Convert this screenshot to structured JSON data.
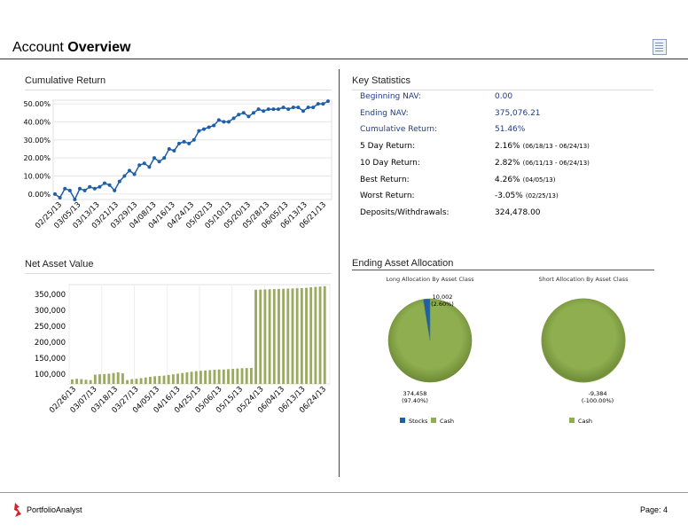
{
  "header": {
    "title_plain": "Account",
    "title_bold": "Overview",
    "doc_icon": "document-icon"
  },
  "cumulative_return": {
    "title": "Cumulative Return"
  },
  "net_asset_value": {
    "title": "Net Asset Value"
  },
  "key_statistics": {
    "title": "Key Statistics",
    "rows": [
      {
        "label": "Beginning NAV:",
        "value": "0.00",
        "range": "",
        "highlight": true
      },
      {
        "label": "Ending NAV:",
        "value": "375,076.21",
        "range": "",
        "highlight": true
      },
      {
        "label": "Cumulative Return:",
        "value": "51.46%",
        "range": "",
        "highlight": true
      },
      {
        "label": "5 Day Return:",
        "value": "2.16%",
        "range": "(06/18/13 - 06/24/13)",
        "highlight": false
      },
      {
        "label": "10 Day Return:",
        "value": "2.82%",
        "range": "(06/11/13 - 06/24/13)",
        "highlight": false
      },
      {
        "label": "Best Return:",
        "value": "4.26%",
        "range": "(04/05/13)",
        "highlight": false
      },
      {
        "label": "Worst Return:",
        "value": "-3.05%",
        "range": "(02/25/13)",
        "highlight": false
      },
      {
        "label": "Deposits/Withdrawals:",
        "value": "324,478.00",
        "range": "",
        "highlight": false
      }
    ]
  },
  "ending_asset_allocation": {
    "title": "Ending Asset Allocation"
  },
  "colors": {
    "line": "#1f5fa8",
    "bar": "#9aaa5e",
    "pie_green": "#8fae4f",
    "pie_blue": "#1f5fa8",
    "highlight_text": "#1f3c88"
  },
  "chart_data": [
    {
      "type": "line",
      "title": "Cumulative Return",
      "ylim": [
        -3,
        52
      ],
      "yticks": [
        "0.00%",
        "10.00%",
        "20.00%",
        "30.00%",
        "40.00%",
        "50.00%"
      ],
      "ytick_values": [
        0,
        10,
        20,
        30,
        40,
        50
      ],
      "xticks": [
        "02/25/13",
        "03/05/13",
        "03/13/13",
        "03/21/13",
        "03/29/13",
        "04/08/13",
        "04/16/13",
        "04/24/13",
        "05/02/13",
        "05/10/13",
        "05/20/13",
        "05/28/13",
        "06/05/13",
        "06/13/13",
        "06/21/13"
      ],
      "series": [
        {
          "name": "Cumulative Return",
          "values": [
            0,
            -2,
            3,
            2,
            -3,
            3,
            2,
            4,
            3,
            4,
            6,
            5,
            2,
            7,
            10,
            13,
            11,
            16,
            17,
            15,
            20,
            18,
            20,
            25,
            24,
            28,
            29,
            28,
            30,
            35,
            36,
            37,
            38,
            41,
            40,
            40,
            42,
            44,
            45,
            43,
            45,
            47,
            46,
            47,
            47,
            47,
            48,
            47,
            48,
            48,
            46,
            48,
            48,
            50,
            50,
            51.46
          ]
        }
      ]
    },
    {
      "type": "bar",
      "title": "Net Asset Value",
      "ylim": [
        70000,
        380000
      ],
      "yticks": [
        "100,000",
        "150,000",
        "200,000",
        "250,000",
        "300,000",
        "350,000"
      ],
      "ytick_values": [
        100000,
        150000,
        200000,
        250000,
        300000,
        350000
      ],
      "xticks": [
        "02/26/13",
        "03/07/13",
        "03/18/13",
        "03/27/13",
        "04/05/13",
        "04/16/13",
        "04/25/13",
        "05/06/13",
        "05/15/13",
        "05/24/13",
        "06/04/13",
        "06/13/13",
        "06/24/13"
      ],
      "values": [
        84000,
        86000,
        85000,
        83000,
        82000,
        99000,
        100000,
        101000,
        102000,
        104000,
        106000,
        103000,
        82000,
        85000,
        86000,
        88000,
        90000,
        92000,
        94000,
        95000,
        96000,
        98000,
        100000,
        102000,
        104000,
        106000,
        108000,
        110000,
        111000,
        112000,
        113000,
        114000,
        115000,
        115000,
        116000,
        117000,
        118000,
        119000,
        119500,
        120000,
        364000,
        364500,
        365000,
        365500,
        366000,
        366500,
        367000,
        367500,
        368000,
        368500,
        369000,
        370000,
        372000,
        373000,
        374000,
        375076
      ]
    },
    {
      "type": "pie",
      "title": "Long Allocation By Asset Class",
      "categories": [
        "Stocks",
        "Cash"
      ],
      "values": [
        10002,
        374458
      ],
      "percent_labels": [
        "(2.60%)",
        "(97.40%)"
      ],
      "value_labels": [
        "10,002",
        "374,458"
      ]
    },
    {
      "type": "pie",
      "title": "Short Allocation By Asset Class",
      "categories": [
        "Cash"
      ],
      "values": [
        -9384
      ],
      "percent_labels": [
        "(-100.00%)"
      ],
      "value_labels": [
        "-9,384"
      ]
    }
  ],
  "footer": {
    "brand": "PortfolioAnalyst",
    "page": "Page: 4"
  }
}
